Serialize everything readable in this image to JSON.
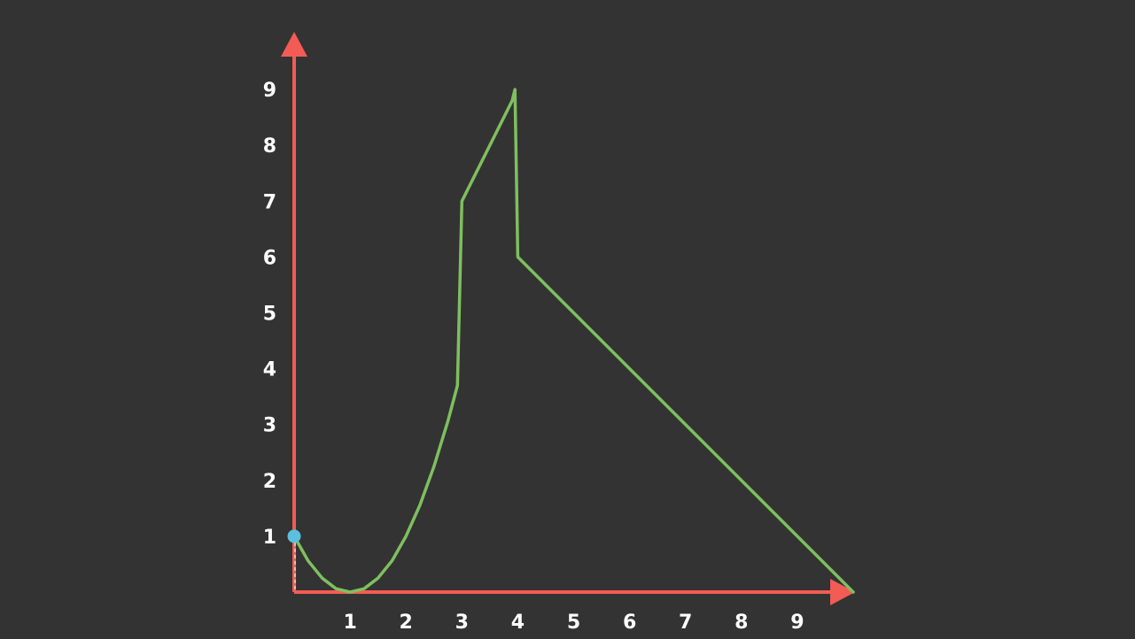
{
  "chart_data": {
    "type": "line",
    "title": "",
    "xlabel": "",
    "ylabel": "",
    "xlim": [
      0,
      10
    ],
    "ylim": [
      0,
      10
    ],
    "x_ticks": [
      "1",
      "2",
      "3",
      "4",
      "5",
      "6",
      "7",
      "8",
      "9"
    ],
    "y_ticks": [
      "1",
      "2",
      "3",
      "4",
      "5",
      "6",
      "7",
      "8",
      "9"
    ],
    "grid": false,
    "legend": "none",
    "series": [
      {
        "color": "#7fbf5f",
        "points": [
          {
            "x": 0,
            "y": 1
          },
          {
            "x": 0.25,
            "y": 0.56
          },
          {
            "x": 0.5,
            "y": 0.25
          },
          {
            "x": 0.75,
            "y": 0.06
          },
          {
            "x": 1,
            "y": 0
          },
          {
            "x": 1.25,
            "y": 0.06
          },
          {
            "x": 1.5,
            "y": 0.25
          },
          {
            "x": 1.75,
            "y": 0.56
          },
          {
            "x": 2,
            "y": 1
          },
          {
            "x": 2.25,
            "y": 1.56
          },
          {
            "x": 2.5,
            "y": 2.25
          },
          {
            "x": 2.75,
            "y": 3.06
          },
          {
            "x": 2.92,
            "y": 3.7
          },
          {
            "x": 3,
            "y": 7
          },
          {
            "x": 3.9,
            "y": 8.8
          },
          {
            "x": 3.95,
            "y": 9.0
          },
          {
            "x": 4,
            "y": 6
          },
          {
            "x": 10,
            "y": 0
          }
        ]
      }
    ],
    "highlight_point": {
      "x": 0,
      "y": 1,
      "color": "#5bc0de"
    },
    "axis_color": "#f25c54"
  }
}
